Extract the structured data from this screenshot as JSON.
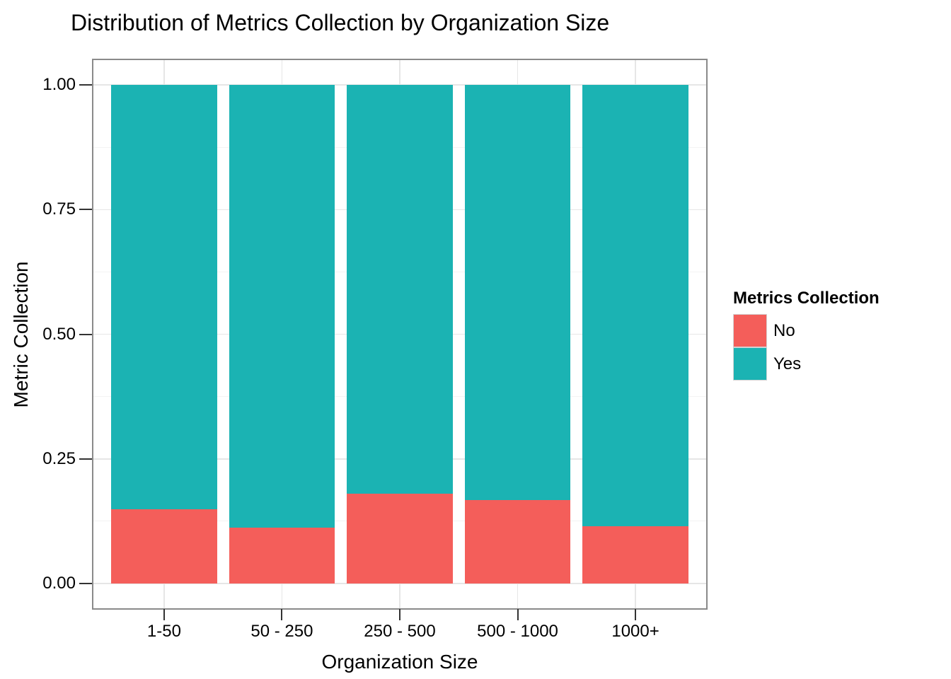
{
  "title": "Distribution of Metrics Collection by Organization Size",
  "x_axis": {
    "title": "Organization Size",
    "tick_labels": [
      "1-50",
      "50 - 250",
      "250 - 500",
      "500 - 1000",
      "1000+"
    ]
  },
  "y_axis": {
    "title": "Metric Collection",
    "ticks": [
      {
        "label": "1.00",
        "value": 1.0
      },
      {
        "label": "0.75",
        "value": 0.75
      },
      {
        "label": "0.50",
        "value": 0.5
      },
      {
        "label": "0.25",
        "value": 0.25
      },
      {
        "label": "0.00",
        "value": 0.0
      }
    ]
  },
  "legend": {
    "title": "Metrics Collection",
    "items": [
      {
        "label": "No",
        "color": "#F45E5A"
      },
      {
        "label": "Yes",
        "color": "#1BB3B3"
      }
    ]
  },
  "chart_data": {
    "type": "bar",
    "stacked": true,
    "normalized": true,
    "title": "Distribution of Metrics Collection by Organization Size",
    "xlabel": "Organization Size",
    "ylabel": "Metric Collection",
    "categories": [
      "1-50",
      "50 - 250",
      "250 - 500",
      "500 - 1000",
      "1000+"
    ],
    "series": [
      {
        "name": "No",
        "color": "#F45E5A",
        "values": [
          0.149,
          0.112,
          0.18,
          0.167,
          0.115
        ]
      },
      {
        "name": "Yes",
        "color": "#1BB3B3",
        "values": [
          0.851,
          0.888,
          0.82,
          0.833,
          0.885
        ]
      }
    ],
    "ylim": [
      0,
      1
    ],
    "y_major_ticks": [
      0,
      0.25,
      0.5,
      0.75,
      1
    ],
    "y_minor_ticks": [
      0.125,
      0.375,
      0.625,
      0.875
    ],
    "legend_position": "right",
    "grid": true,
    "style": {
      "background": "#FFFFFF",
      "panel_border": "#8A8A8A",
      "grid_major": "#E6E6E6",
      "grid_minor": "#F3F3F3",
      "tick_color": "#333333",
      "bar_width_fraction": 0.9
    }
  }
}
